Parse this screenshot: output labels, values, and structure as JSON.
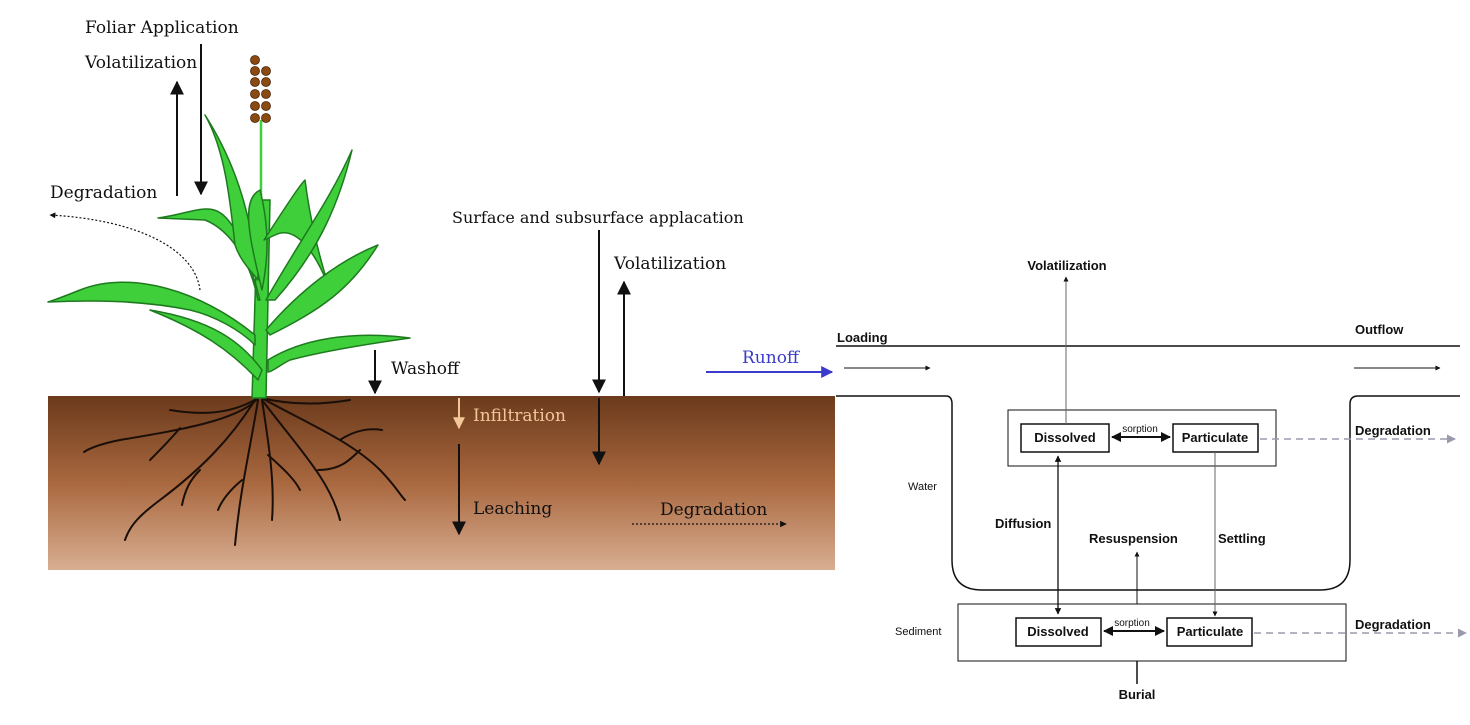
{
  "left": {
    "foliar_application": "Foliar Application",
    "volatilization_top": "Volatilization",
    "degradation_air": "Degradation",
    "surface_subsurface": "Surface and subsurface applacation",
    "volatilization_soil": "Volatilization",
    "washoff": "Washoff",
    "infiltration": "Infiltration",
    "leaching": "Leaching",
    "degradation_soil": "Degradation",
    "runoff": "Runoff"
  },
  "right": {
    "volatilization": "Volatilization",
    "loading": "Loading",
    "outflow": "Outflow",
    "water_label": "Water",
    "sediment_label": "Sediment",
    "water_dissolved": "Dissolved",
    "water_particulate": "Particulate",
    "water_sorption": "sorption",
    "water_degradation": "Degradation",
    "diffusion": "Diffusion",
    "resuspension": "Resuspension",
    "settling": "Settling",
    "sed_dissolved": "Dissolved",
    "sed_particulate": "Particulate",
    "sed_sorption": "sorption",
    "sed_degradation": "Degradation",
    "burial": "Burial"
  },
  "colors": {
    "soil_top": "#6b3a1c",
    "soil_mid": "#a9683f",
    "soil_bottom": "#d8ae92",
    "leaf": "#3fcf3a",
    "leaf_dark": "#1e7a1e",
    "seed": "#8a4a12",
    "infiltration": "#f2c79a",
    "runoff": "#3a3acc",
    "degradation_arrow": "#9a9aae",
    "ink": "#111111"
  }
}
